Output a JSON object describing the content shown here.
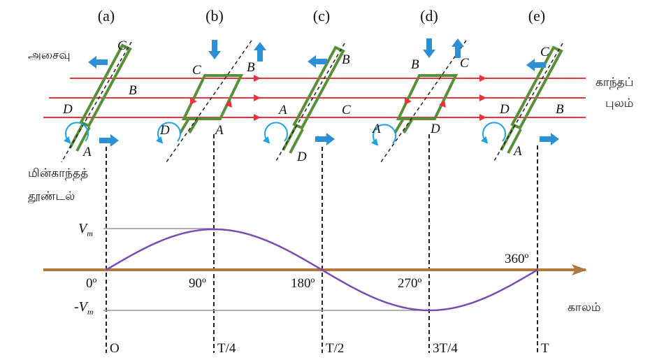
{
  "panels": [
    {
      "label": "(a)",
      "corners": {
        "top": "C",
        "mid": "B",
        "left": "D",
        "bottom": "A"
      }
    },
    {
      "label": "(b)",
      "corners": {
        "left": "C",
        "right": "B",
        "leftlow": "D",
        "bottom": "A"
      }
    },
    {
      "label": "(c)",
      "corners": {
        "top": "B",
        "left": "A",
        "right": "C",
        "bottom": "D"
      }
    },
    {
      "label": "(d)",
      "corners": {
        "left": "B",
        "right": "C",
        "leftlow": "A",
        "bottom": "D"
      }
    },
    {
      "label": "(e)",
      "corners": {
        "top": "C",
        "left": "D",
        "right": "B",
        "bottom": "A"
      }
    }
  ],
  "labels": {
    "motion": "அசைவு",
    "field_line1": "காந்தப்",
    "field_line2": "புலம்",
    "emf_line1": "மின்காந்தத்",
    "emf_line2": "தூண்டல்",
    "time": "காலம்"
  },
  "amplitude": {
    "pos": "V",
    "neg": "-V",
    "sub": "m"
  },
  "angles": [
    "0º",
    "90º",
    "180º",
    "270º",
    "360º"
  ],
  "times": [
    "O",
    "T/4",
    "T/2",
    "3T/4",
    "T"
  ],
  "colors": {
    "field": "#e8333b",
    "coil": "#5a8f3a",
    "arrow": "#2d8fd5",
    "rotation": "#1ea3e0",
    "axis": "#b0783a",
    "wave": "#7b4bb3"
  }
}
